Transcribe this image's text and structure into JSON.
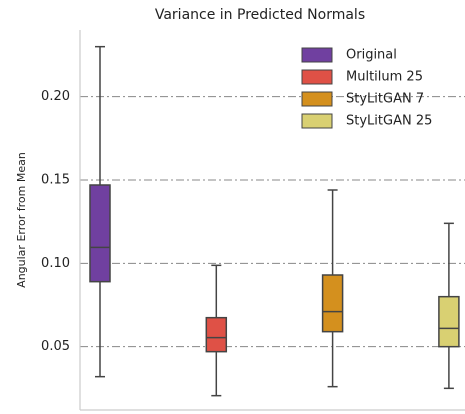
{
  "chart_data": {
    "type": "box",
    "title": "Variance in Predicted Normals",
    "y_label": "Angular Error from Mean",
    "series": [
      {
        "name": "Original",
        "color": "#7040a0",
        "values": [
          0.032,
          0.089,
          0.1096,
          0.147,
          0.23
        ]
      },
      {
        "name": "Multilum 25",
        "color": "#df5146",
        "values": [
          0.0206,
          0.047,
          0.0554,
          0.0674,
          0.0988
        ]
      },
      {
        "name": "StyLitGAN 7",
        "color": "#d4901e",
        "values": [
          0.026,
          0.059,
          0.071,
          0.093,
          0.144
        ]
      },
      {
        "name": "StyLitGAN 25",
        "color": "#d9d072",
        "values": [
          0.025,
          0.05,
          0.061,
          0.08,
          0.124
        ]
      }
    ],
    "ylim": [
      0.012,
      0.24
    ],
    "yticks": [
      {
        "value": 0.05,
        "label": "0.05"
      },
      {
        "value": 0.1,
        "label": "0.10"
      },
      {
        "value": 0.15,
        "label": "0.15"
      },
      {
        "value": 0.2,
        "label": "0.20"
      }
    ],
    "grid": true,
    "legend": "upper right"
  }
}
